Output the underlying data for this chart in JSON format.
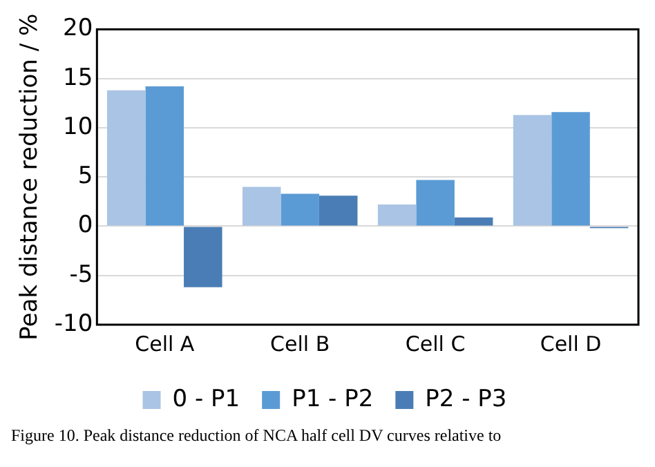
{
  "chart_data": {
    "type": "bar",
    "ylabel": "Peak distance reduction / %",
    "categories": [
      "Cell A",
      "Cell B",
      "Cell C",
      "Cell D"
    ],
    "series": [
      {
        "name": "0 - P1",
        "color": "#a9c4e4",
        "values": [
          13.8,
          4.0,
          2.2,
          11.3
        ]
      },
      {
        "name": "P1 - P2",
        "color": "#5b9bd5",
        "values": [
          14.2,
          3.3,
          4.7,
          11.6
        ]
      },
      {
        "name": "P2 - P3",
        "color": "#4a7db5",
        "values": [
          -6.2,
          3.1,
          0.9,
          -0.2
        ]
      }
    ],
    "ylim": [
      -10,
      20
    ],
    "yticks": [
      -10,
      -5,
      0,
      5,
      10,
      15,
      20
    ],
    "grid": "y",
    "legend": "bottom",
    "annotations": [
      "Figure 10. Peak distance reduction of NCA half cell DV curves relative to"
    ]
  }
}
